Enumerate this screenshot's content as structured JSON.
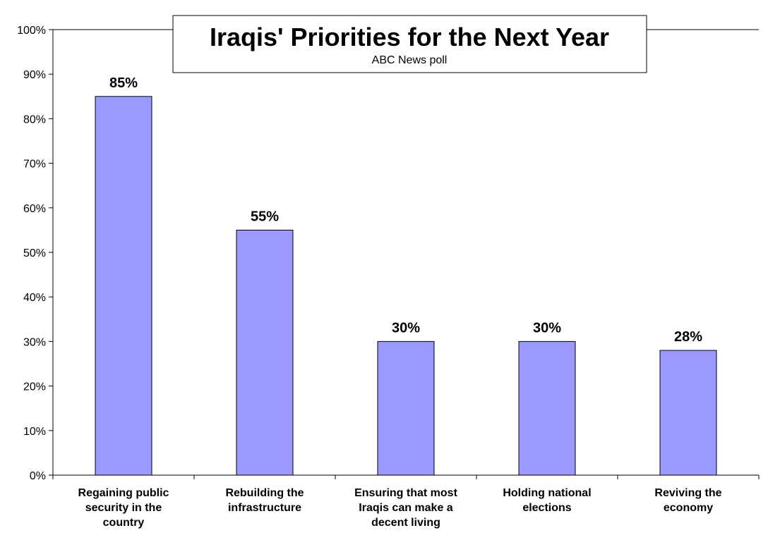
{
  "chart_data": {
    "type": "bar",
    "title": "Iraqis' Priorities for the Next Year",
    "subtitle": "ABC News poll",
    "categories": [
      [
        "Regaining public",
        "security in the",
        "country"
      ],
      [
        "Rebuilding the",
        "infrastructure"
      ],
      [
        "Ensuring that most",
        "Iraqis can make a",
        "decent living"
      ],
      [
        "Holding national",
        "elections"
      ],
      [
        "Reviving the",
        "economy"
      ]
    ],
    "values": [
      85,
      55,
      30,
      30,
      28
    ],
    "data_labels": [
      "85%",
      "55%",
      "30%",
      "30%",
      "28%"
    ],
    "ylim": [
      0,
      100
    ],
    "yticks": [
      0,
      10,
      20,
      30,
      40,
      50,
      60,
      70,
      80,
      90,
      100
    ],
    "ytick_labels": [
      "0%",
      "10%",
      "20%",
      "30%",
      "40%",
      "50%",
      "60%",
      "70%",
      "80%",
      "90%",
      "100%"
    ],
    "grid": false,
    "legend": "none",
    "colors": {
      "bar_fill": "#9999ff",
      "bar_stroke": "#000000",
      "axis": "#000000"
    }
  }
}
